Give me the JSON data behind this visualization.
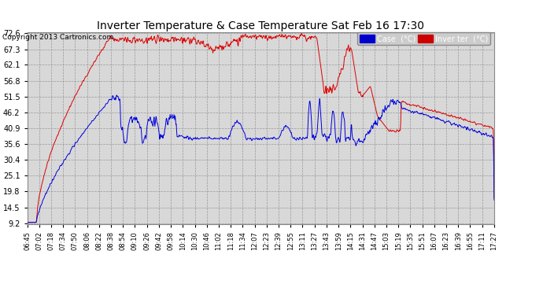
{
  "title": "Inverter Temperature & Case Temperature Sat Feb 16 17:30",
  "copyright": "Copyright 2013 Cartronics.com",
  "yticks": [
    9.2,
    14.5,
    19.8,
    25.1,
    30.4,
    35.6,
    40.9,
    46.2,
    51.5,
    56.8,
    62.1,
    67.3,
    72.6
  ],
  "ymin": 9.2,
  "ymax": 72.6,
  "bg_color": "#ffffff",
  "plot_bg_color": "#d8d8d8",
  "grid_color": "#aaaaaa",
  "case_color": "#0000dd",
  "inverter_color": "#dd0000",
  "xtick_labels": [
    "06:45",
    "07:02",
    "07:18",
    "07:34",
    "07:50",
    "08:06",
    "08:22",
    "08:38",
    "08:54",
    "09:10",
    "09:26",
    "09:42",
    "09:58",
    "10:14",
    "10:30",
    "10:46",
    "11:02",
    "11:18",
    "11:34",
    "12:07",
    "12:23",
    "12:39",
    "12:55",
    "13:11",
    "13:27",
    "13:43",
    "13:59",
    "14:15",
    "14:31",
    "14:47",
    "15:03",
    "15:19",
    "15:35",
    "15:51",
    "16:07",
    "16:23",
    "16:39",
    "16:55",
    "17:11",
    "17:27"
  ]
}
